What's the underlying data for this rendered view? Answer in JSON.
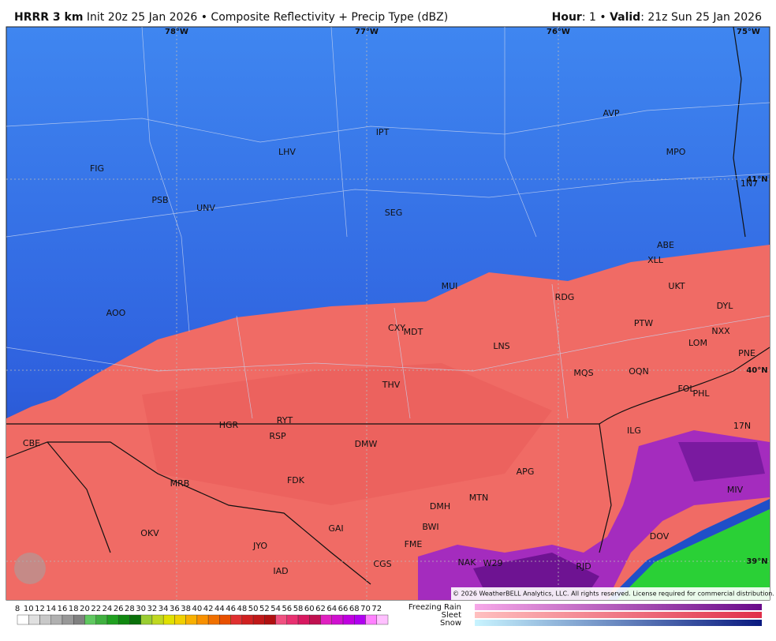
{
  "header": {
    "model": "HRRR 3 km",
    "product": " Init 20z 25 Jan 2026 • Composite Reflectivity + Precip Type (dBZ)",
    "hour_label": "Hour",
    "hour": ": 1 • ",
    "valid_label": "Valid",
    "valid": ": 21z Sun 25 Jan 2026"
  },
  "grid_labels": [
    "78°W",
    "77°W",
    "76°W",
    "75°W",
    "41°N",
    "40°N",
    "39°N"
  ],
  "stations": [
    "FIG",
    "LHV",
    "IPT",
    "AVP",
    "MPO",
    "PSB",
    "UNV",
    "SEG",
    "1N7",
    "ABE",
    "XLL",
    "MUI",
    "RDG",
    "UKT",
    "DYL",
    "AOO",
    "CXY",
    "MDT",
    "PTW",
    "NXX",
    "LNS",
    "LOM",
    "PNE",
    "MQS",
    "OQN",
    "THV",
    "FOL",
    "PHL",
    "RYT",
    "HGR",
    "ILG",
    "17N",
    "RSP",
    "CBE",
    "DMW",
    "APG",
    "MRB",
    "FDK",
    "MIV",
    "MTN",
    "DMH",
    "GAI",
    "BWI",
    "OKV",
    "JYO",
    "FME",
    "DOV",
    "CGS",
    "IAD",
    "NAK",
    "W29",
    "RJD"
  ],
  "copyright": "© 2026 WeatherBELL Analytics, LLC. All rights reserved. License required for commercial distribution.",
  "colorbar": {
    "ticks": [
      8,
      10,
      12,
      14,
      16,
      18,
      20,
      22,
      24,
      26,
      28,
      30,
      32,
      34,
      36,
      38,
      40,
      42,
      44,
      46,
      48,
      50,
      52,
      54,
      56,
      58,
      60,
      62,
      64,
      66,
      68,
      70,
      72
    ],
    "precip_types": [
      "Freezing Rain",
      "Sleet",
      "Snow"
    ]
  }
}
